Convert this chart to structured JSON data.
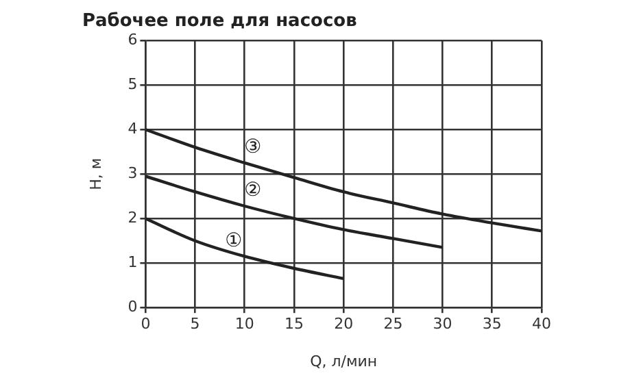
{
  "chart_data": {
    "type": "line",
    "title": "Рабочее поле для насосов",
    "xlabel": "Q, л/мин",
    "ylabel": "H, м",
    "series": [
      {
        "name": "①",
        "color": "#222222",
        "x": [
          0,
          5,
          10,
          15,
          20
        ],
        "values": [
          2.0,
          1.5,
          1.15,
          0.88,
          0.65
        ]
      },
      {
        "name": "②",
        "color": "#222222",
        "x": [
          0,
          5,
          10,
          15,
          20,
          25,
          30
        ],
        "values": [
          2.95,
          2.6,
          2.28,
          2.0,
          1.75,
          1.55,
          1.35
        ]
      },
      {
        "name": "③",
        "color": "#222222",
        "x": [
          0,
          5,
          10,
          15,
          20,
          25,
          30,
          35,
          40
        ],
        "values": [
          4.0,
          3.6,
          3.25,
          2.92,
          2.6,
          2.35,
          2.1,
          1.9,
          1.72
        ]
      }
    ],
    "xlim": [
      0,
      40
    ],
    "xticks": [
      0,
      5,
      10,
      15,
      20,
      25,
      30,
      35,
      40
    ],
    "ylim": [
      0,
      6
    ],
    "yticks": [
      0,
      1,
      2,
      3,
      4,
      5,
      6
    ],
    "grid": true,
    "legend": false,
    "marker": "none",
    "line_style": "solid"
  }
}
